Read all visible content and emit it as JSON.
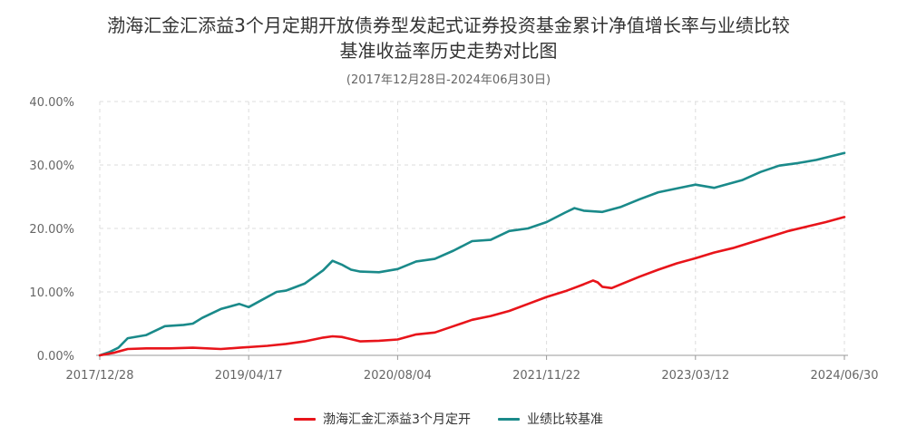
{
  "chart_data": {
    "type": "line",
    "title_line1": "渤海汇金汇添益3个月定期开放债券型发起式证券投资基金累计净值增长率与业绩比较",
    "title_line2": "基准收益率历史走势对比图",
    "subtitle": "(2017年12月28日-2024年06月30日)",
    "y_ticks": [
      "0.00%",
      "10.00%",
      "20.00%",
      "30.00%",
      "40.00%"
    ],
    "ylim": [
      0,
      40
    ],
    "x_ticks": [
      "2017/12/28",
      "2019/04/17",
      "2020/08/04",
      "2021/11/22",
      "2023/03/12",
      "2024/06/30"
    ],
    "grid": true,
    "legend_position": "bottom",
    "series": [
      {
        "name": "渤海汇金汇添益3个月定开",
        "color": "#e8141a",
        "x": [
          0,
          0.15,
          0.3,
          0.5,
          0.75,
          1,
          1.3,
          1.5,
          1.8,
          2.0,
          2.2,
          2.4,
          2.5,
          2.6,
          2.8,
          3.0,
          3.2,
          3.4,
          3.6,
          3.8,
          4.0,
          4.2,
          4.4,
          4.6,
          4.8,
          5.0,
          5.2,
          5.3,
          5.35,
          5.4,
          5.5,
          5.6,
          5.8,
          6.0,
          6.2,
          6.4,
          6.6,
          6.8,
          7.0,
          7.2,
          7.4,
          7.6,
          7.8,
          8.0
        ],
        "values": [
          0,
          0.4,
          1.0,
          1.1,
          1.1,
          1.2,
          1.0,
          1.2,
          1.5,
          1.8,
          2.2,
          2.8,
          3.0,
          2.9,
          2.2,
          2.3,
          2.5,
          3.3,
          3.6,
          4.6,
          5.6,
          6.2,
          7.0,
          8.1,
          9.2,
          10.1,
          11.2,
          11.8,
          11.5,
          10.8,
          10.6,
          11.2,
          12.4,
          13.5,
          14.5,
          15.3,
          16.2,
          16.9,
          17.8,
          18.7,
          19.6,
          20.3,
          21.0,
          21.8
        ]
      },
      {
        "name": "业绩比较基准",
        "color": "#1a8a8a",
        "x": [
          0,
          0.1,
          0.2,
          0.3,
          0.5,
          0.7,
          0.9,
          1.0,
          1.1,
          1.3,
          1.5,
          1.6,
          1.7,
          1.9,
          2.0,
          2.2,
          2.4,
          2.5,
          2.6,
          2.7,
          2.8,
          3.0,
          3.2,
          3.4,
          3.6,
          3.8,
          4.0,
          4.2,
          4.4,
          4.6,
          4.8,
          5.0,
          5.1,
          5.2,
          5.4,
          5.6,
          5.8,
          6.0,
          6.2,
          6.4,
          6.6,
          6.7,
          6.9,
          7.1,
          7.3,
          7.5,
          7.7,
          8.0
        ],
        "values": [
          0,
          0.5,
          1.2,
          2.7,
          3.2,
          4.6,
          4.8,
          5.0,
          5.9,
          7.3,
          8.1,
          7.6,
          8.4,
          10.0,
          10.2,
          11.3,
          13.4,
          14.9,
          14.3,
          13.5,
          13.2,
          13.1,
          13.6,
          14.8,
          15.2,
          16.5,
          18.0,
          18.2,
          19.6,
          20.0,
          21.0,
          22.5,
          23.2,
          22.8,
          22.6,
          23.4,
          24.6,
          25.7,
          26.3,
          26.9,
          26.4,
          26.8,
          27.6,
          28.9,
          29.9,
          30.3,
          30.8,
          31.9
        ]
      }
    ]
  }
}
